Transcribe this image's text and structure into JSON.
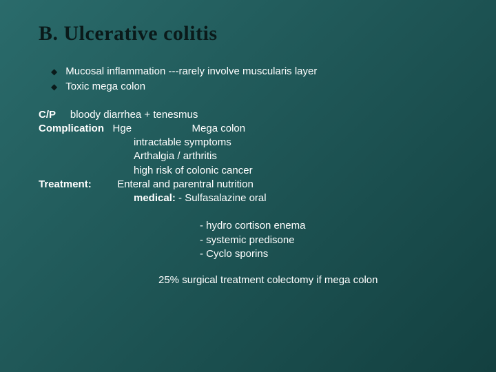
{
  "colors": {
    "bg_gradient_start": "#2a6b6b",
    "bg_gradient_mid": "#1e5555",
    "bg_gradient_end": "#134040",
    "title_color": "#0a1a1a",
    "bullet_color": "#0a1a1a",
    "text_color": "#ffffff"
  },
  "typography": {
    "title_font": "Georgia serif",
    "title_size_pt": 22,
    "title_weight": "bold",
    "body_font": "Verdana sans-serif",
    "body_size_pt": 11
  },
  "title": "B. Ulcerative colitis",
  "bullets": [
    "Mucosal inflammation ---rarely involve muscularis layer",
    "Toxic mega colon"
  ],
  "cp": {
    "label": "C/P",
    "value": "     bloody diarrhea + tenesmus"
  },
  "complication": {
    "label": "Complication",
    "first_line": "   Hge                     Mega colon",
    "lines": [
      "intractable symptoms",
      "Arthalgia            / arthritis",
      "high risk of colonic cancer"
    ]
  },
  "treatment": {
    "label": "Treatment:",
    "first_line": "         Enteral and parentral nutrition",
    "line2_prefix": "medical:",
    "line2_rest": " - Sulfasalazine oral",
    "sub_lines": [
      "- hydro cortison enema",
      "- systemic predisone",
      "- Cyclo sporins"
    ]
  },
  "footer": "25% surgical treatment  colectomy if mega colon"
}
